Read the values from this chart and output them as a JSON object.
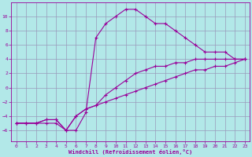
{
  "xlabel": "Windchill (Refroidissement éolien,°C)",
  "background_color": "#b2e8e8",
  "grid_color": "#9999bb",
  "line_color": "#990099",
  "x_ticks": [
    0,
    1,
    2,
    3,
    4,
    5,
    6,
    7,
    8,
    9,
    10,
    11,
    12,
    13,
    14,
    15,
    16,
    17,
    18,
    19,
    20,
    21,
    22,
    23
  ],
  "y_ticks": [
    -6,
    -4,
    -2,
    0,
    2,
    4,
    6,
    8,
    10
  ],
  "ylim": [
    -7.5,
    12.0
  ],
  "xlim": [
    -0.5,
    23.5
  ],
  "line1_x": [
    0,
    1,
    2,
    3,
    4,
    5,
    6,
    7,
    8,
    9,
    10,
    11,
    12,
    13,
    14,
    15,
    16,
    17,
    18,
    19,
    20,
    21,
    22,
    23
  ],
  "line1_y": [
    -5,
    -5,
    -5,
    -5,
    -5,
    -6,
    -6,
    -3.5,
    7,
    9,
    10,
    11,
    11,
    10,
    9,
    9,
    8,
    7,
    6,
    5,
    5,
    5,
    4,
    4
  ],
  "line2_x": [
    0,
    1,
    2,
    3,
    4,
    5,
    6,
    7,
    8,
    9,
    10,
    11,
    12,
    13,
    14,
    15,
    16,
    17,
    18,
    19,
    20,
    21,
    22,
    23
  ],
  "line2_y": [
    -5,
    -5,
    -5,
    -4.5,
    -4.5,
    -6,
    -4,
    -3,
    -2.5,
    -1,
    0,
    1,
    2,
    2.5,
    3,
    3,
    3.5,
    3.5,
    4,
    4,
    4,
    4,
    4,
    4
  ],
  "line3_x": [
    0,
    1,
    2,
    3,
    4,
    5,
    6,
    7,
    8,
    9,
    10,
    11,
    12,
    13,
    14,
    15,
    16,
    17,
    18,
    19,
    20,
    21,
    22,
    23
  ],
  "line3_y": [
    -5,
    -5,
    -5,
    -4.5,
    -4.5,
    -6,
    -4,
    -3,
    -2.5,
    -2,
    -1.5,
    -1,
    -0.5,
    0,
    0.5,
    1,
    1.5,
    2,
    2.5,
    2.5,
    3,
    3,
    3.5,
    4
  ]
}
